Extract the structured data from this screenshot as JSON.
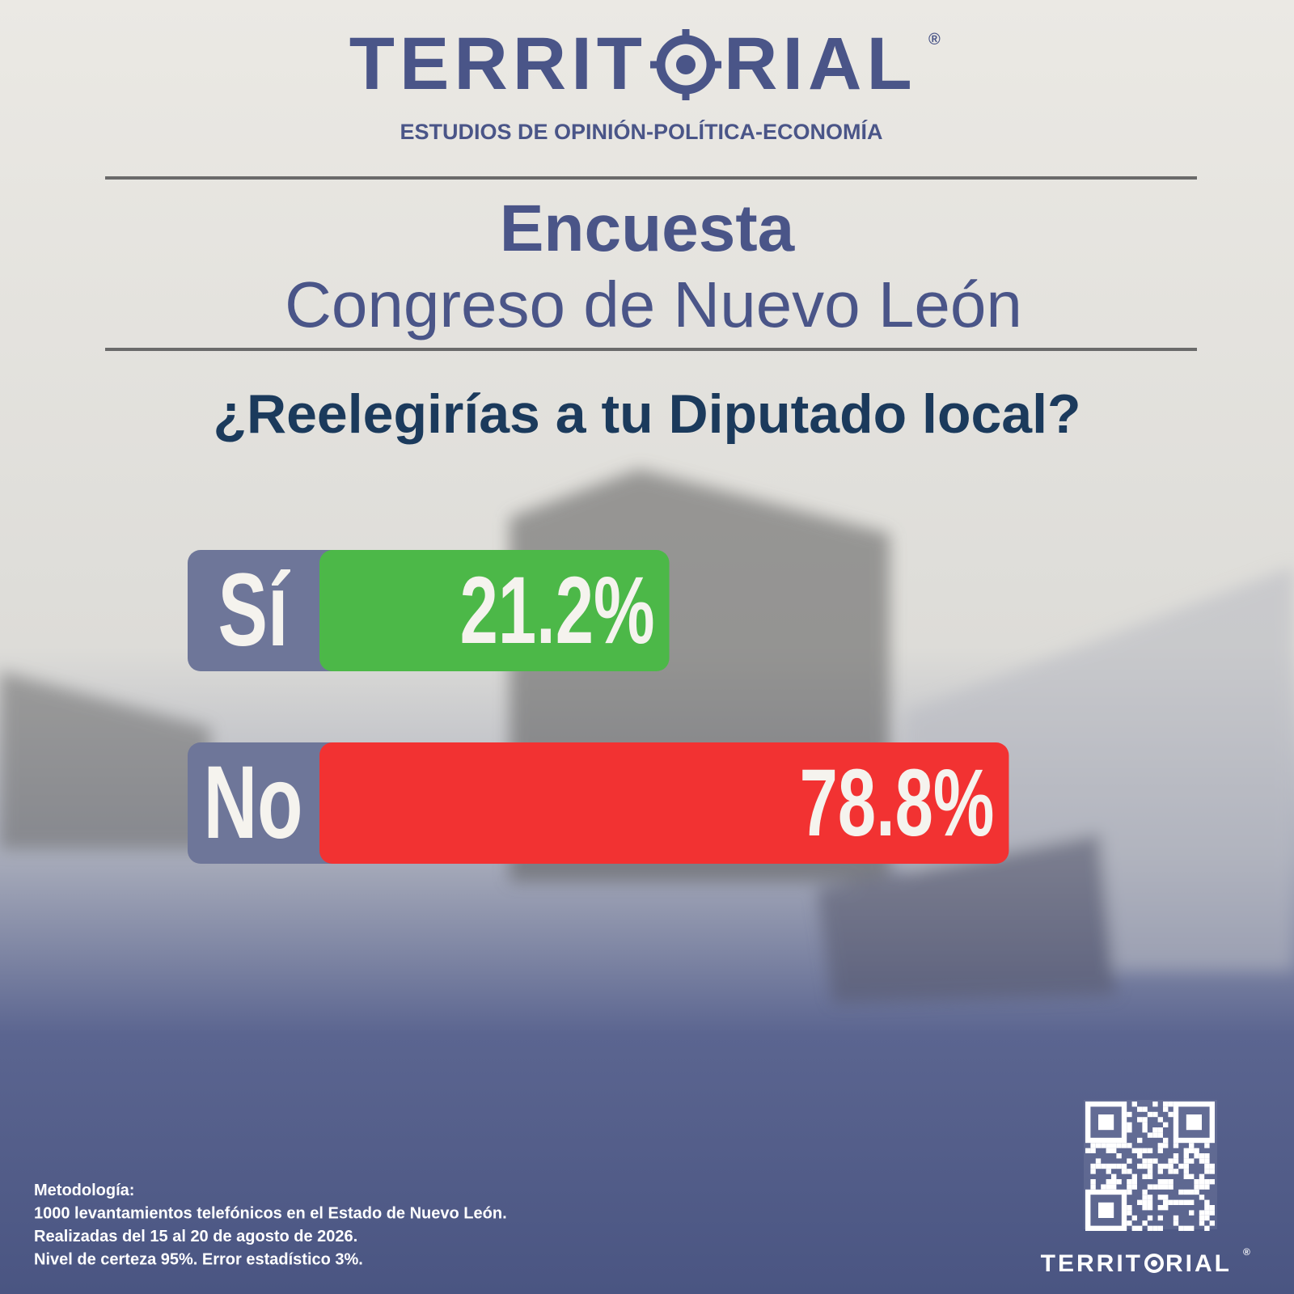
{
  "header": {
    "brand_before": "TERRIT",
    "brand_after": "RIAL",
    "registered": "®",
    "tagline": "ESTUDIOS DE OPINIÓN-POLÍTICA-ECONOMÍA"
  },
  "chart_data": {
    "type": "bar",
    "orientation": "horizontal",
    "title": "Encuesta",
    "subtitle": "Congreso de Nuevo León",
    "question": "¿Reelegirías a tu Diputado local?",
    "categories": [
      "Sí",
      "No"
    ],
    "values": [
      21.2,
      78.8
    ],
    "value_labels": [
      "21.2%",
      "78.8%"
    ],
    "colors": [
      "#4cb848",
      "#f23232"
    ]
  },
  "footer": {
    "methodology": [
      "Metodología:",
      "1000 levantamientos telefónicos en el Estado de Nuevo León.",
      "Realizadas del 15 al 20 de agosto de 2026.",
      "Nivel de certeza 95%.  Error estadístico 3%."
    ],
    "brand_before": "TERRIT",
    "brand_after": "RIAL",
    "registered": "®"
  }
}
